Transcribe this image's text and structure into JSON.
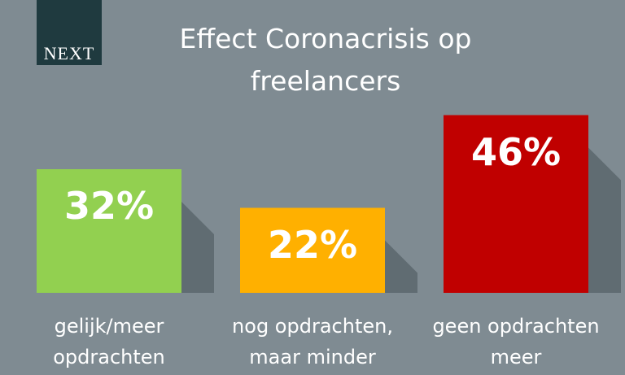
{
  "chart_data": {
    "type": "bar",
    "title": "Effect Coronacrisis op freelancers",
    "logo": "NEXT",
    "categories": [
      "gelijk/meer opdrachten",
      "nog opdrachten, maar minder",
      "geen opdrachten meer"
    ],
    "values": [
      32,
      22,
      46
    ],
    "value_labels": [
      "32%",
      "22%",
      "46%"
    ],
    "colors": [
      "#92d050",
      "#ffb000",
      "#c00000"
    ]
  }
}
